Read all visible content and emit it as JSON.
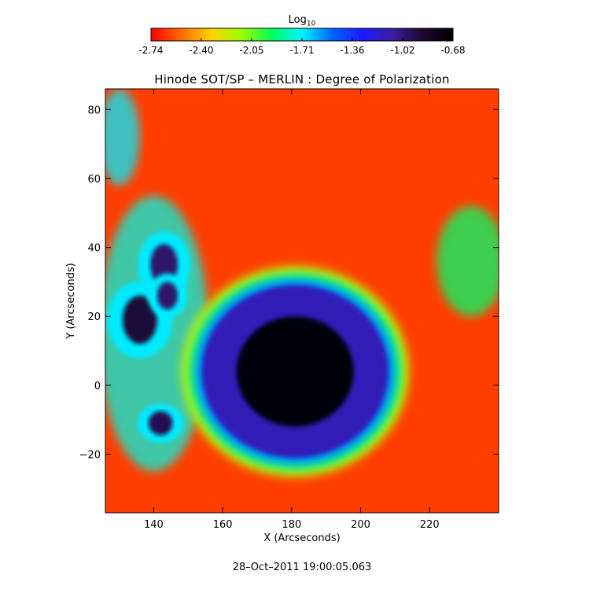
{
  "colorbar": {
    "label_main": "Log",
    "label_sub": "10",
    "tick_labels": [
      "-2.74",
      "-2.40",
      "-2.05",
      "-1.71",
      "-1.36",
      "-1.02",
      "-0.68"
    ],
    "range": [
      -2.74,
      -0.68
    ],
    "colormap": [
      "#ff0000",
      "#ff6a00",
      "#ffd200",
      "#9cff00",
      "#00ff5a",
      "#00f2ff",
      "#0064ff",
      "#1a1aff",
      "#3b1d9c",
      "#1c0730",
      "#000000"
    ]
  },
  "title": "Hinode SOT/SP – MERLIN : Degree of Polarization",
  "timestamp": "28–Oct–2011 19:00:05.063",
  "chart_data": {
    "type": "heatmap",
    "title": "Hinode SOT/SP – MERLIN : Degree of Polarization",
    "xlabel": "X (Arcseconds)",
    "ylabel": "Y (Arcseconds)",
    "xlim": [
      126,
      240
    ],
    "ylim": [
      -37,
      86
    ],
    "x_ticks": [
      140,
      160,
      180,
      200,
      220
    ],
    "y_ticks": [
      -20,
      0,
      20,
      40,
      60,
      80
    ],
    "x_tick_labels": [
      "140",
      "160",
      "180",
      "200",
      "220"
    ],
    "y_tick_labels": [
      "−20",
      "0",
      "20",
      "40",
      "60",
      "80"
    ],
    "value_label": "Log10 Degree of Polarization",
    "value_range": [
      -2.74,
      -0.68
    ],
    "background_level": -2.62,
    "features": [
      {
        "name": "sunspot umbra",
        "x": 181,
        "y": 4,
        "rx": 17,
        "ry": 16,
        "value": -0.72
      },
      {
        "name": "sunspot penumbra",
        "x": 181,
        "y": 4,
        "rx": 27,
        "ry": 25,
        "value": -1.15
      },
      {
        "name": "pore",
        "x": 136,
        "y": 19,
        "rx": 5,
        "ry": 7,
        "value": -0.9
      },
      {
        "name": "pore",
        "x": 143,
        "y": 35,
        "rx": 4,
        "ry": 6,
        "value": -1.0
      },
      {
        "name": "pore",
        "x": 142,
        "y": -11,
        "rx": 3.5,
        "ry": 3.5,
        "value": -0.95
      },
      {
        "name": "pore",
        "x": 144,
        "y": 26,
        "rx": 3,
        "ry": 4,
        "value": -1.0
      },
      {
        "name": "plage",
        "x": 140,
        "y": 15,
        "rx": 16,
        "ry": 40,
        "value": -1.75
      },
      {
        "name": "plage",
        "x": 232,
        "y": 36,
        "rx": 10,
        "ry": 16,
        "value": -1.9
      },
      {
        "name": "plage",
        "x": 130,
        "y": 72,
        "rx": 6,
        "ry": 14,
        "value": -1.7
      }
    ],
    "grid": false,
    "legend": "colorbar top"
  }
}
